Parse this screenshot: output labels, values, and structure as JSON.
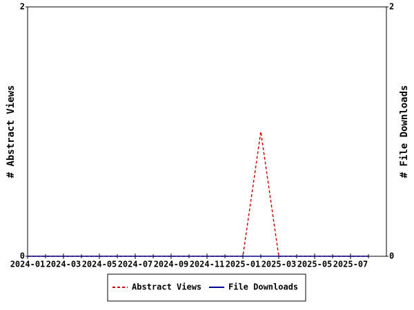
{
  "chart_data": {
    "type": "line",
    "x": [
      "2024-01",
      "2024-02",
      "2024-03",
      "2024-04",
      "2024-05",
      "2024-06",
      "2024-07",
      "2024-08",
      "2024-09",
      "2024-10",
      "2024-11",
      "2024-12",
      "2025-01",
      "2025-02",
      "2025-03",
      "2025-04",
      "2025-05",
      "2025-06",
      "2025-07",
      "2025-08"
    ],
    "series": [
      {
        "name": "Abstract Views",
        "color": "#cc0000",
        "dashed": true,
        "values": [
          0,
          0,
          0,
          0,
          0,
          0,
          0,
          0,
          0,
          0,
          0,
          0,
          0,
          1,
          0,
          0,
          0,
          0,
          0,
          0
        ]
      },
      {
        "name": "File Downloads",
        "color": "#000099",
        "dashed": false,
        "axis": "y2",
        "values": [
          0,
          0,
          0,
          0,
          0,
          0,
          0,
          0,
          0,
          0,
          0,
          0,
          0,
          0,
          0,
          0,
          0,
          0,
          0,
          0
        ]
      }
    ],
    "xlim": [
      "2024-01",
      "2025-08"
    ],
    "xticks": [
      "2024-01",
      "2024-03",
      "2024-05",
      "2024-07",
      "2024-09",
      "2024-11",
      "2025-01",
      "2025-03",
      "2025-05",
      "2025-07"
    ],
    "ylabel": "# Abstract Views",
    "ylim": [
      0,
      2
    ],
    "yticks": [
      0,
      2
    ],
    "y2label": "# File Downloads",
    "y2lim": [
      0,
      2
    ],
    "y2ticks": [
      0,
      2
    ],
    "grid": false,
    "legend": "bottom"
  }
}
